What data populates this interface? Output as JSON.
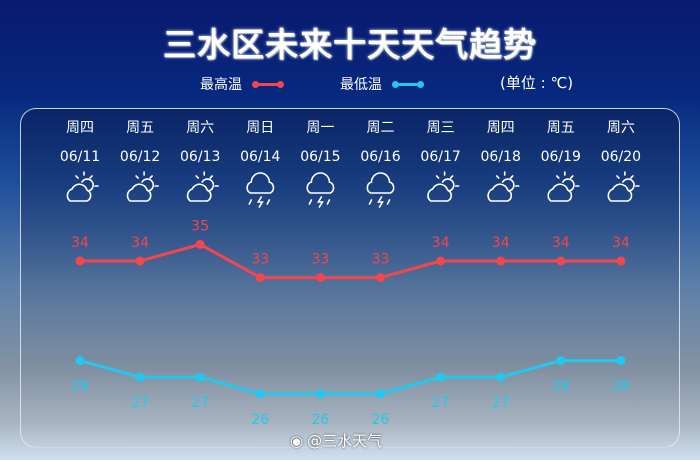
{
  "title": "三水区未来十天天气趋势",
  "legend": {
    "high": "最高温",
    "low": "最低温"
  },
  "unit": "(单位 : ℃)",
  "watermark": "@三水天气",
  "colors": {
    "high": "#f2474d",
    "low": "#22c8f0"
  },
  "chart_data": {
    "type": "line",
    "categories": [
      "06/11",
      "06/12",
      "06/13",
      "06/14",
      "06/15",
      "06/16",
      "06/17",
      "06/18",
      "06/19",
      "06/20"
    ],
    "weekdays": [
      "周四",
      "周五",
      "周六",
      "周日",
      "周一",
      "周二",
      "周三",
      "周四",
      "周五",
      "周六"
    ],
    "weather_icons": [
      "partly-cloudy",
      "partly-cloudy",
      "partly-cloudy",
      "thunderstorm",
      "thunderstorm",
      "thunderstorm",
      "partly-cloudy",
      "partly-cloudy",
      "partly-cloudy",
      "partly-cloudy"
    ],
    "series": [
      {
        "name": "最高温",
        "values": [
          34,
          34,
          35,
          33,
          33,
          33,
          34,
          34,
          34,
          34
        ]
      },
      {
        "name": "最低温",
        "values": [
          28,
          27,
          27,
          26,
          26,
          26,
          27,
          27,
          28,
          28
        ]
      }
    ],
    "grid": false
  }
}
